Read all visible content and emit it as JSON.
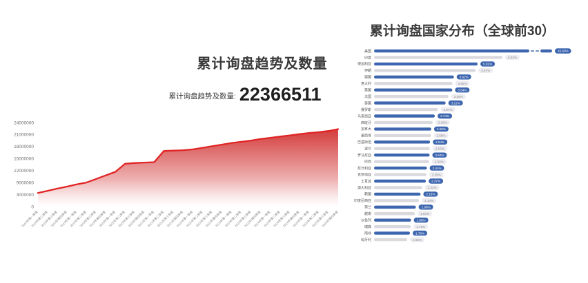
{
  "page": {
    "background": "#ffffff"
  },
  "trend": {
    "title": "累计询盘趋势及数量",
    "stat_label": "累计询盘趋势及数量:",
    "stat_value": "22366511"
  },
  "distribution": {
    "title": "累计询盘国家分布（全球前30）"
  },
  "colors": {
    "trend_line": "#e02424",
    "trend_fill_top": "#d23232",
    "trend_fill_bottom": "#ffffff",
    "bar_blue": "#3d66af",
    "bar_gray": "#d9d9de",
    "badge_blue_bg": "#3d66af",
    "badge_blue_text": "#ffffff",
    "badge_gray_bg": "#ededf1",
    "badge_gray_text": "#8b8b90",
    "axis_text": "#8a8a8a",
    "country_text": "#555555"
  },
  "chart_data": [
    {
      "type": "area",
      "title": "累计询盘趋势及数量",
      "xlabel": "",
      "ylabel": "",
      "y_ticks": [
        0,
        3000000,
        9000000,
        12000000,
        15000000,
        18000000,
        21000000,
        24000000
      ],
      "x": [
        "2018年第一季度",
        "2018年第二季度",
        "2018年第三季度",
        "2018年第四季度",
        "2019年第一季度",
        "2019年第二季度",
        "2019年第三季度",
        "2019年第四季度",
        "2020年第一季度",
        "2020年第二季度",
        "2020年第三季度",
        "2020年第四季度",
        "2021年第一季度",
        "2021年第二季度",
        "2021年第三季度",
        "2021年第四季度",
        "2022年第一季度",
        "2022年第二季度",
        "2022年第三季度",
        "2022年第四季度",
        "2023年第一季度",
        "2023年第二季度",
        "2023年第三季度",
        "2023年第四季度",
        "2024年第一季度",
        "2024年第二季度",
        "2024年第三季度",
        "2024年第四季度",
        "2025年第一季度",
        "2025年第二季度",
        "2025年第三季度",
        "2025年第四季度"
      ],
      "values": [
        3800000,
        4900000,
        6000000,
        7000000,
        8100000,
        9000000,
        9900000,
        10800000,
        11700000,
        13700000,
        13900000,
        14000000,
        14100000,
        16900000,
        17000000,
        17100000,
        17300000,
        17700000,
        18100000,
        18500000,
        18900000,
        19200000,
        19500000,
        19900000,
        20200000,
        20500000,
        20800000,
        21100000,
        21400000,
        21600000,
        21900000,
        22366511
      ],
      "grid": false,
      "legend": false
    },
    {
      "type": "bar",
      "orientation": "horizontal",
      "title": "累计询盘国家分布（全球前30）",
      "unit": "%",
      "categories": [
        "美国",
        "印度",
        "保加利亚",
        "伊朗",
        "德国",
        "意大利",
        "英国",
        "法国",
        "泰国",
        "俄罗斯",
        "马来西亚",
        "西班牙",
        "加拿大",
        "墨西哥",
        "巴基斯坦",
        "波兰",
        "罗马尼亚",
        "巴西",
        "尼日利亚",
        "克罗地亚",
        "土耳其",
        "澳大利亚",
        "韩国",
        "印度尼西亚",
        "荷兰",
        "越南",
        "以色列",
        "瑞典",
        "南非",
        "匈牙利"
      ],
      "values": [
        15.63,
        8.93,
        5.01,
        4.87,
        3.62,
        3.55,
        3.54,
        3.35,
        3.22,
        2.87,
        2.74,
        2.65,
        2.59,
        2.58,
        2.54,
        2.53,
        2.52,
        2.5,
        2.41,
        2.39,
        2.37,
        2.22,
        2.16,
        2.1,
        1.98,
        1.94,
        1.8,
        1.79,
        1.76,
        1.66
      ],
      "value_labels": [
        "15.63%",
        "8.93%",
        "5.01%",
        "4.87%",
        "3.62%",
        "3.55%",
        "3.54%",
        "3.35%",
        "3.22%",
        "2.87%",
        "2.74%",
        "2.65%",
        "2.59%",
        "2.58%",
        "2.54%",
        "2.53%",
        "2.52%",
        "2.50%",
        "2.41%",
        "2.39%",
        "2.37%",
        "2.22%",
        "2.16%",
        "2.10%",
        "1.98%",
        "1.94%",
        "1.80%",
        "1.79%",
        "1.76%",
        "1.66%"
      ],
      "note": "first bar truncated with axis break",
      "legend": false
    }
  ]
}
